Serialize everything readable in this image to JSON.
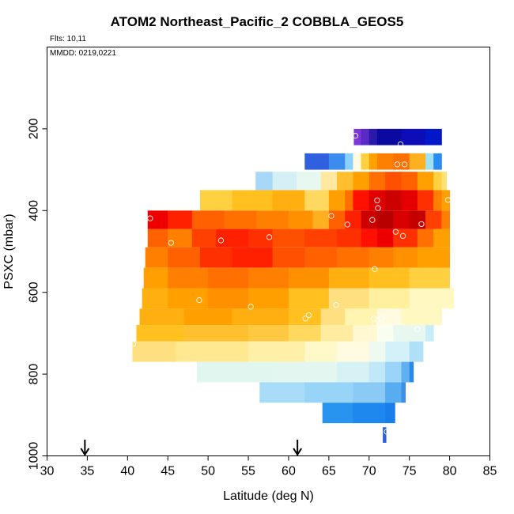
{
  "chart_data": {
    "type": "heatmap",
    "title": "ATOM2 Northeast_Pacific_2 COBBLA_GEOS5",
    "flights_note": "Flts: 10,11",
    "date_note": "MMDD: 0219,0221",
    "xlabel": "Latitude (deg N)",
    "ylabel": "PSXC (mbar)",
    "xlim": [
      30,
      85
    ],
    "ylim": [
      1000,
      0
    ],
    "x_ticks": [
      30,
      35,
      40,
      45,
      50,
      55,
      60,
      65,
      70,
      75,
      80,
      85
    ],
    "y_ticks": [
      200,
      400,
      600,
      800,
      1000
    ],
    "arrows_at_latitude": [
      34.7,
      61.1
    ],
    "levels": [
      {
        "p_top": 200,
        "p_bot": 240,
        "segments": [
          [
            68.1,
            69,
            "#7a36d8"
          ],
          [
            69,
            70,
            "#5a2ac6"
          ],
          [
            70,
            71,
            "#2a1aaa"
          ],
          [
            71,
            74,
            "#0a0aa0"
          ],
          [
            74,
            77,
            "#0c0cb8"
          ],
          [
            77,
            79,
            "#0018c8"
          ]
        ]
      },
      {
        "p_top": 260,
        "p_bot": 300,
        "segments": [
          [
            62,
            65,
            "#3060e0"
          ],
          [
            65,
            67,
            "#3c8cf0"
          ],
          [
            67,
            68,
            "#8ad0f8"
          ],
          [
            68,
            69,
            "#fffae0"
          ],
          [
            69,
            70,
            "#ffd040"
          ],
          [
            70,
            71,
            "#ffa000"
          ],
          [
            71,
            73,
            "#ff8000"
          ],
          [
            73,
            75,
            "#ff7000"
          ],
          [
            75,
            77,
            "#ffb020"
          ],
          [
            77,
            78,
            "#a0e0f0"
          ],
          [
            78,
            79,
            "#2a8cf0"
          ]
        ]
      },
      {
        "p_top": 305,
        "p_bot": 350,
        "segments": [
          [
            55.9,
            58,
            "#a8d8f8"
          ],
          [
            58,
            61,
            "#d4f0f6"
          ],
          [
            61,
            64,
            "#e6f8ef"
          ],
          [
            64,
            66,
            "#ffe8a0"
          ],
          [
            66,
            68,
            "#ffc030"
          ],
          [
            68,
            70,
            "#ffa000"
          ],
          [
            70,
            72,
            "#ff7000"
          ],
          [
            72,
            74,
            "#ff5000"
          ],
          [
            74,
            76,
            "#ff6000"
          ],
          [
            76,
            78,
            "#ffa000"
          ],
          [
            78,
            79,
            "#ffd040"
          ],
          [
            79,
            79.6,
            "#ffe070"
          ]
        ]
      },
      {
        "p_top": 350,
        "p_bot": 400,
        "segments": [
          [
            49,
            53,
            "#ffd040"
          ],
          [
            53,
            58,
            "#ffc020"
          ],
          [
            58,
            62,
            "#ffb010"
          ],
          [
            62,
            65,
            "#ffd860"
          ],
          [
            65,
            67,
            "#ffa000"
          ],
          [
            67,
            68,
            "#ff7000"
          ],
          [
            68,
            70,
            "#ff1000"
          ],
          [
            70,
            72,
            "#e00000"
          ],
          [
            72,
            74,
            "#cc0000"
          ],
          [
            74,
            76,
            "#e40000"
          ],
          [
            76,
            78,
            "#ff3000"
          ],
          [
            78,
            79,
            "#ff8000"
          ],
          [
            79,
            80,
            "#ffa000"
          ]
        ]
      },
      {
        "p_top": 400,
        "p_bot": 445,
        "segments": [
          [
            42.5,
            45,
            "#ee0000"
          ],
          [
            45,
            48,
            "#ff2000"
          ],
          [
            48,
            52,
            "#ff6000"
          ],
          [
            52,
            56,
            "#ff7000"
          ],
          [
            56,
            60,
            "#ff8000"
          ],
          [
            60,
            63,
            "#ff9000"
          ],
          [
            63,
            65,
            "#ffb020"
          ],
          [
            65,
            67,
            "#ff6000"
          ],
          [
            67,
            69,
            "#ff2000"
          ],
          [
            69,
            71,
            "#cc0000"
          ],
          [
            71,
            73,
            "#b80000"
          ],
          [
            73,
            75,
            "#d80000"
          ],
          [
            75,
            77,
            "#c40000"
          ],
          [
            77,
            79,
            "#ff4000"
          ],
          [
            79,
            80,
            "#ff8000"
          ]
        ]
      },
      {
        "p_top": 445,
        "p_bot": 490,
        "segments": [
          [
            42.5,
            45,
            "#ff6000"
          ],
          [
            45,
            48,
            "#ff8000"
          ],
          [
            48,
            51,
            "#ff4000"
          ],
          [
            51,
            55,
            "#ff2000"
          ],
          [
            55,
            58,
            "#ff3000"
          ],
          [
            58,
            62,
            "#ff5000"
          ],
          [
            62,
            66,
            "#ff4000"
          ],
          [
            66,
            69,
            "#ff3000"
          ],
          [
            69,
            71,
            "#ff1000"
          ],
          [
            71,
            73,
            "#ee0000"
          ],
          [
            73,
            76,
            "#ff3000"
          ],
          [
            76,
            78,
            "#ff7000"
          ],
          [
            78,
            80,
            "#ffa000"
          ]
        ]
      },
      {
        "p_top": 490,
        "p_bot": 540,
        "segments": [
          [
            42.2,
            45,
            "#ff8000"
          ],
          [
            45,
            49,
            "#ff6000"
          ],
          [
            49,
            53,
            "#ff3000"
          ],
          [
            53,
            58,
            "#ff2000"
          ],
          [
            58,
            62,
            "#ff5000"
          ],
          [
            62,
            66,
            "#ff6000"
          ],
          [
            66,
            70,
            "#ff7000"
          ],
          [
            70,
            73,
            "#ff8000"
          ],
          [
            73,
            76,
            "#ff9000"
          ],
          [
            76,
            80,
            "#ffa000"
          ]
        ]
      },
      {
        "p_top": 540,
        "p_bot": 590,
        "segments": [
          [
            42,
            45,
            "#ffa000"
          ],
          [
            45,
            50,
            "#ff8000"
          ],
          [
            50,
            55,
            "#ff7000"
          ],
          [
            55,
            60,
            "#ff8000"
          ],
          [
            60,
            65,
            "#ff9000"
          ],
          [
            65,
            70,
            "#ffb010"
          ],
          [
            70,
            75,
            "#ffc020"
          ],
          [
            75,
            80,
            "#ffd040"
          ]
        ]
      },
      {
        "p_top": 590,
        "p_bot": 640,
        "segments": [
          [
            41.8,
            45,
            "#ffb010"
          ],
          [
            45,
            50,
            "#ffa000"
          ],
          [
            50,
            55,
            "#ff9000"
          ],
          [
            55,
            60,
            "#ffa000"
          ],
          [
            60,
            65,
            "#ffc020"
          ],
          [
            65,
            70,
            "#ffe080"
          ],
          [
            70,
            75,
            "#fff0a0"
          ],
          [
            75,
            80.5,
            "#fff8c0"
          ]
        ]
      },
      {
        "p_top": 640,
        "p_bot": 680,
        "segments": [
          [
            41.5,
            47,
            "#ffb010"
          ],
          [
            47,
            53,
            "#ffa000"
          ],
          [
            53,
            60,
            "#ffb010"
          ],
          [
            60,
            64,
            "#ffc020"
          ],
          [
            64,
            67,
            "#ffe080"
          ],
          [
            67,
            71,
            "#fff4b0"
          ],
          [
            71,
            74,
            "#fffae0"
          ],
          [
            74,
            79,
            "#fff8c0"
          ]
        ]
      },
      {
        "p_top": 680,
        "p_bot": 720,
        "segments": [
          [
            41.1,
            47,
            "#ffc020"
          ],
          [
            47,
            55,
            "#ffc030"
          ],
          [
            55,
            60,
            "#ffc840"
          ],
          [
            60,
            64,
            "#ffd860"
          ],
          [
            64,
            68,
            "#ffeca0"
          ],
          [
            68,
            71,
            "#fff8d0"
          ],
          [
            71,
            73,
            "#f8fff0"
          ],
          [
            73,
            77,
            "#e8f8f0"
          ],
          [
            77,
            78,
            "#c8ecf8"
          ]
        ]
      },
      {
        "p_top": 720,
        "p_bot": 770,
        "segments": [
          [
            40.6,
            46,
            "#ffe080"
          ],
          [
            46,
            55,
            "#ffe890"
          ],
          [
            55,
            62,
            "#fff0a8"
          ],
          [
            62,
            66,
            "#fff8c8"
          ],
          [
            66,
            70,
            "#fffae0"
          ],
          [
            70,
            72,
            "#eefaf0"
          ],
          [
            72,
            75,
            "#d4f0f8"
          ],
          [
            75,
            76.7,
            "#b0e0f8"
          ]
        ]
      },
      {
        "p_top": 770,
        "p_bot": 820,
        "segments": [
          [
            48.6,
            58,
            "#e0f6ee"
          ],
          [
            58,
            66,
            "#e4f6f0"
          ],
          [
            66,
            70,
            "#d6f2f4"
          ],
          [
            70,
            72,
            "#c0e8f8"
          ],
          [
            72,
            74,
            "#9ad4f8"
          ],
          [
            74,
            75,
            "#60b0f0"
          ],
          [
            75,
            75.5,
            "#2a8ae8"
          ]
        ]
      },
      {
        "p_top": 820,
        "p_bot": 870,
        "segments": [
          [
            56.4,
            62,
            "#a8dcf8"
          ],
          [
            62,
            68,
            "#98d4f8"
          ],
          [
            68,
            72,
            "#8ccaf6"
          ],
          [
            72,
            74,
            "#58acf0"
          ],
          [
            74,
            74.5,
            "#3a90e8"
          ]
        ]
      },
      {
        "p_top": 870,
        "p_bot": 920,
        "segments": [
          [
            64.2,
            68,
            "#2894f0"
          ],
          [
            68,
            72,
            "#1e88ee"
          ],
          [
            72,
            73.2,
            "#1a7ee8"
          ]
        ]
      },
      {
        "p_top": 930,
        "p_bot": 968,
        "segments": [
          [
            71.7,
            72.1,
            "#2a64d8"
          ]
        ]
      }
    ],
    "circles": [
      [
        68.3,
        217
      ],
      [
        73.9,
        238
      ],
      [
        79,
        248
      ],
      [
        73.5,
        287
      ],
      [
        74.4,
        287
      ],
      [
        76.5,
        433
      ],
      [
        79.8,
        374
      ],
      [
        71,
        375
      ],
      [
        71.1,
        394
      ],
      [
        70.4,
        423
      ],
      [
        65.3,
        413
      ],
      [
        67.3,
        434
      ],
      [
        42.8,
        419
      ],
      [
        73.3,
        452
      ],
      [
        74.2,
        462
      ],
      [
        45.4,
        479
      ],
      [
        51.6,
        473
      ],
      [
        57.6,
        465
      ],
      [
        70.7,
        543
      ],
      [
        48.9,
        619
      ],
      [
        55.3,
        635
      ],
      [
        65.9,
        631
      ],
      [
        62.5,
        656
      ],
      [
        62.1,
        664
      ],
      [
        70.6,
        664
      ],
      [
        71.5,
        664
      ],
      [
        70.7,
        676
      ],
      [
        76,
        690
      ],
      [
        40.7,
        726
      ],
      [
        72.2,
        941
      ]
    ]
  }
}
